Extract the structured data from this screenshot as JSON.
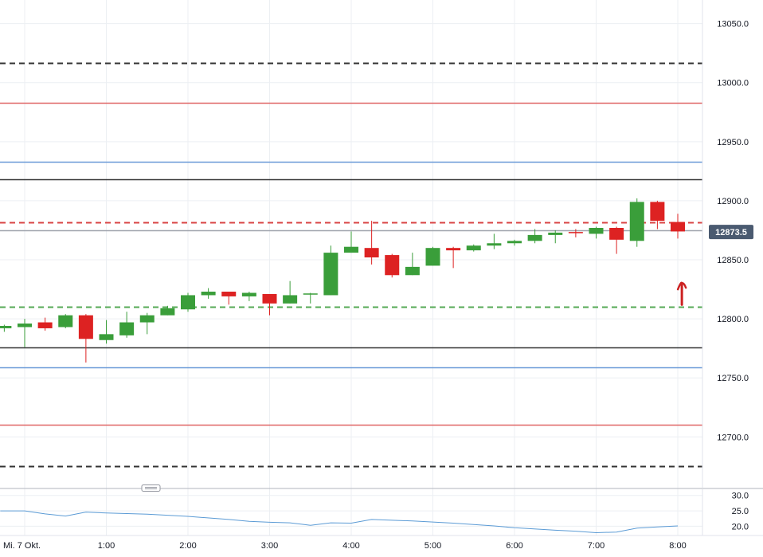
{
  "chart_data": {
    "type": "candlestick",
    "price_axis": {
      "ylim": [
        12657,
        13070
      ],
      "ticks": [
        13050.0,
        13000.0,
        12950.0,
        12900.0,
        12850.0,
        12800.0,
        12750.0,
        12700.0
      ],
      "tick_labels": [
        "13050.0",
        "13000.0",
        "12950.0",
        "12900.0",
        "12850.0",
        "12800.0",
        "12750.0",
        "12700.0"
      ]
    },
    "time_axis": {
      "labels": [
        "Mi. 7 Okt.",
        "1:00",
        "2:00",
        "3:00",
        "4:00",
        "5:00",
        "6:00",
        "7:00",
        "8:00"
      ],
      "label_times": [
        0.0,
        1.0,
        2.0,
        3.0,
        4.0,
        5.0,
        6.0,
        7.0,
        8.0
      ]
    },
    "last_price": {
      "value": 12873.5,
      "label": "12873.5",
      "color": "#4a5a70"
    },
    "colors": {
      "up": "#3a9e3a",
      "down": "#dd2222",
      "grid": "#eceff3"
    },
    "candles": [
      {
        "t": -0.25,
        "o": 12792,
        "h": 12795,
        "l": 12789,
        "c": 12794
      },
      {
        "t": 0.0,
        "o": 12793,
        "h": 12800,
        "l": 12776,
        "c": 12796
      },
      {
        "t": 0.25,
        "o": 12797,
        "h": 12801,
        "l": 12790,
        "c": 12792
      },
      {
        "t": 0.5,
        "o": 12793,
        "h": 12804,
        "l": 12792,
        "c": 12803
      },
      {
        "t": 0.75,
        "o": 12803,
        "h": 12804,
        "l": 12763,
        "c": 12783
      },
      {
        "t": 1.0,
        "o": 12782,
        "h": 12799,
        "l": 12779,
        "c": 12787
      },
      {
        "t": 1.25,
        "o": 12786,
        "h": 12806,
        "l": 12784,
        "c": 12797
      },
      {
        "t": 1.5,
        "o": 12797,
        "h": 12805,
        "l": 12787,
        "c": 12803
      },
      {
        "t": 1.75,
        "o": 12803,
        "h": 12811,
        "l": 12803,
        "c": 12809
      },
      {
        "t": 2.0,
        "o": 12808,
        "h": 12822,
        "l": 12806,
        "c": 12820
      },
      {
        "t": 2.25,
        "o": 12820,
        "h": 12826,
        "l": 12817,
        "c": 12823
      },
      {
        "t": 2.5,
        "o": 12823,
        "h": 12823,
        "l": 12812,
        "c": 12819
      },
      {
        "t": 2.75,
        "o": 12819,
        "h": 12823,
        "l": 12815,
        "c": 12822
      },
      {
        "t": 3.0,
        "o": 12821,
        "h": 12821,
        "l": 12803,
        "c": 12813
      },
      {
        "t": 3.25,
        "o": 12813,
        "h": 12832,
        "l": 12813,
        "c": 12820
      },
      {
        "t": 3.5,
        "o": 12820,
        "h": 12822,
        "l": 12813,
        "c": 12821
      },
      {
        "t": 3.75,
        "o": 12820,
        "h": 12862,
        "l": 12820,
        "c": 12856
      },
      {
        "t": 4.0,
        "o": 12856,
        "h": 12874,
        "l": 12856,
        "c": 12861
      },
      {
        "t": 4.25,
        "o": 12860,
        "h": 12883,
        "l": 12846,
        "c": 12852
      },
      {
        "t": 4.5,
        "o": 12854,
        "h": 12855,
        "l": 12835,
        "c": 12837
      },
      {
        "t": 4.75,
        "o": 12837,
        "h": 12856,
        "l": 12837,
        "c": 12844
      },
      {
        "t": 5.0,
        "o": 12845,
        "h": 12861,
        "l": 12845,
        "c": 12860
      },
      {
        "t": 5.25,
        "o": 12860,
        "h": 12861,
        "l": 12843,
        "c": 12858
      },
      {
        "t": 5.5,
        "o": 12858,
        "h": 12863,
        "l": 12857,
        "c": 12862
      },
      {
        "t": 5.75,
        "o": 12862,
        "h": 12872,
        "l": 12859,
        "c": 12864
      },
      {
        "t": 6.0,
        "o": 12864,
        "h": 12867,
        "l": 12862,
        "c": 12866
      },
      {
        "t": 6.25,
        "o": 12866,
        "h": 12876,
        "l": 12864,
        "c": 12871
      },
      {
        "t": 6.5,
        "o": 12871,
        "h": 12875,
        "l": 12864,
        "c": 12873
      },
      {
        "t": 6.75,
        "o": 12873,
        "h": 12876,
        "l": 12869,
        "c": 12872
      },
      {
        "t": 7.0,
        "o": 12872,
        "h": 12878,
        "l": 12868,
        "c": 12877
      },
      {
        "t": 7.25,
        "o": 12877,
        "h": 12878,
        "l": 12855,
        "c": 12867
      },
      {
        "t": 7.5,
        "o": 12866,
        "h": 12902,
        "l": 12861,
        "c": 12899
      },
      {
        "t": 7.75,
        "o": 12899,
        "h": 12900,
        "l": 12876,
        "c": 12883
      },
      {
        "t": 8.0,
        "o": 12882,
        "h": 12889,
        "l": 12868,
        "c": 12874
      }
    ],
    "levels": [
      {
        "value": 13017,
        "style": "dashed",
        "color": "#333333"
      },
      {
        "value": 12983,
        "style": "solid",
        "color": "#e06666"
      },
      {
        "value": 12933,
        "style": "solid",
        "color": "#6a9ad8"
      },
      {
        "value": 12918,
        "style": "solid",
        "color": "#333333"
      },
      {
        "value": 12882,
        "style": "dashed",
        "color": "#d94444"
      },
      {
        "value": 12875,
        "style": "solid",
        "color": "#a0a4ad"
      },
      {
        "value": 12810,
        "style": "dashed",
        "color": "#55aa55"
      },
      {
        "value": 12776,
        "style": "solid",
        "color": "#333333"
      },
      {
        "value": 12759,
        "style": "solid",
        "color": "#6a9ad8"
      },
      {
        "value": 12710,
        "style": "solid",
        "color": "#e06666"
      },
      {
        "value": 12675,
        "style": "dashed",
        "color": "#333333"
      }
    ],
    "annotation": {
      "type": "arrow-up",
      "t": 8.05,
      "from": 12812,
      "to": 12829,
      "color": "#cc2222"
    },
    "indicator": {
      "ylim": [
        17,
        32
      ],
      "ticks": [
        30.0,
        25.0,
        20.0
      ],
      "tick_labels": [
        "30.0",
        "25.0",
        "20.0"
      ],
      "color": "#5b9bd5",
      "points": [
        [
          -0.3,
          25
        ],
        [
          0.0,
          25
        ],
        [
          0.25,
          24
        ],
        [
          0.5,
          23.3
        ],
        [
          0.75,
          24.6
        ],
        [
          1.0,
          24.3
        ],
        [
          1.5,
          23.9
        ],
        [
          2.0,
          23.2
        ],
        [
          2.5,
          22.2
        ],
        [
          2.75,
          21.6
        ],
        [
          3.0,
          21.3
        ],
        [
          3.25,
          21.1
        ],
        [
          3.5,
          20.3
        ],
        [
          3.75,
          21.1
        ],
        [
          4.0,
          21
        ],
        [
          4.25,
          22.2
        ],
        [
          4.75,
          21.7
        ],
        [
          5.25,
          21.0
        ],
        [
          5.75,
          20.1
        ],
        [
          6.0,
          19.5
        ],
        [
          6.5,
          18.7
        ],
        [
          6.75,
          18.4
        ],
        [
          7.0,
          17.9
        ],
        [
          7.25,
          18.1
        ],
        [
          7.5,
          19.4
        ],
        [
          7.75,
          19.8
        ],
        [
          8.0,
          20.1
        ]
      ]
    }
  }
}
